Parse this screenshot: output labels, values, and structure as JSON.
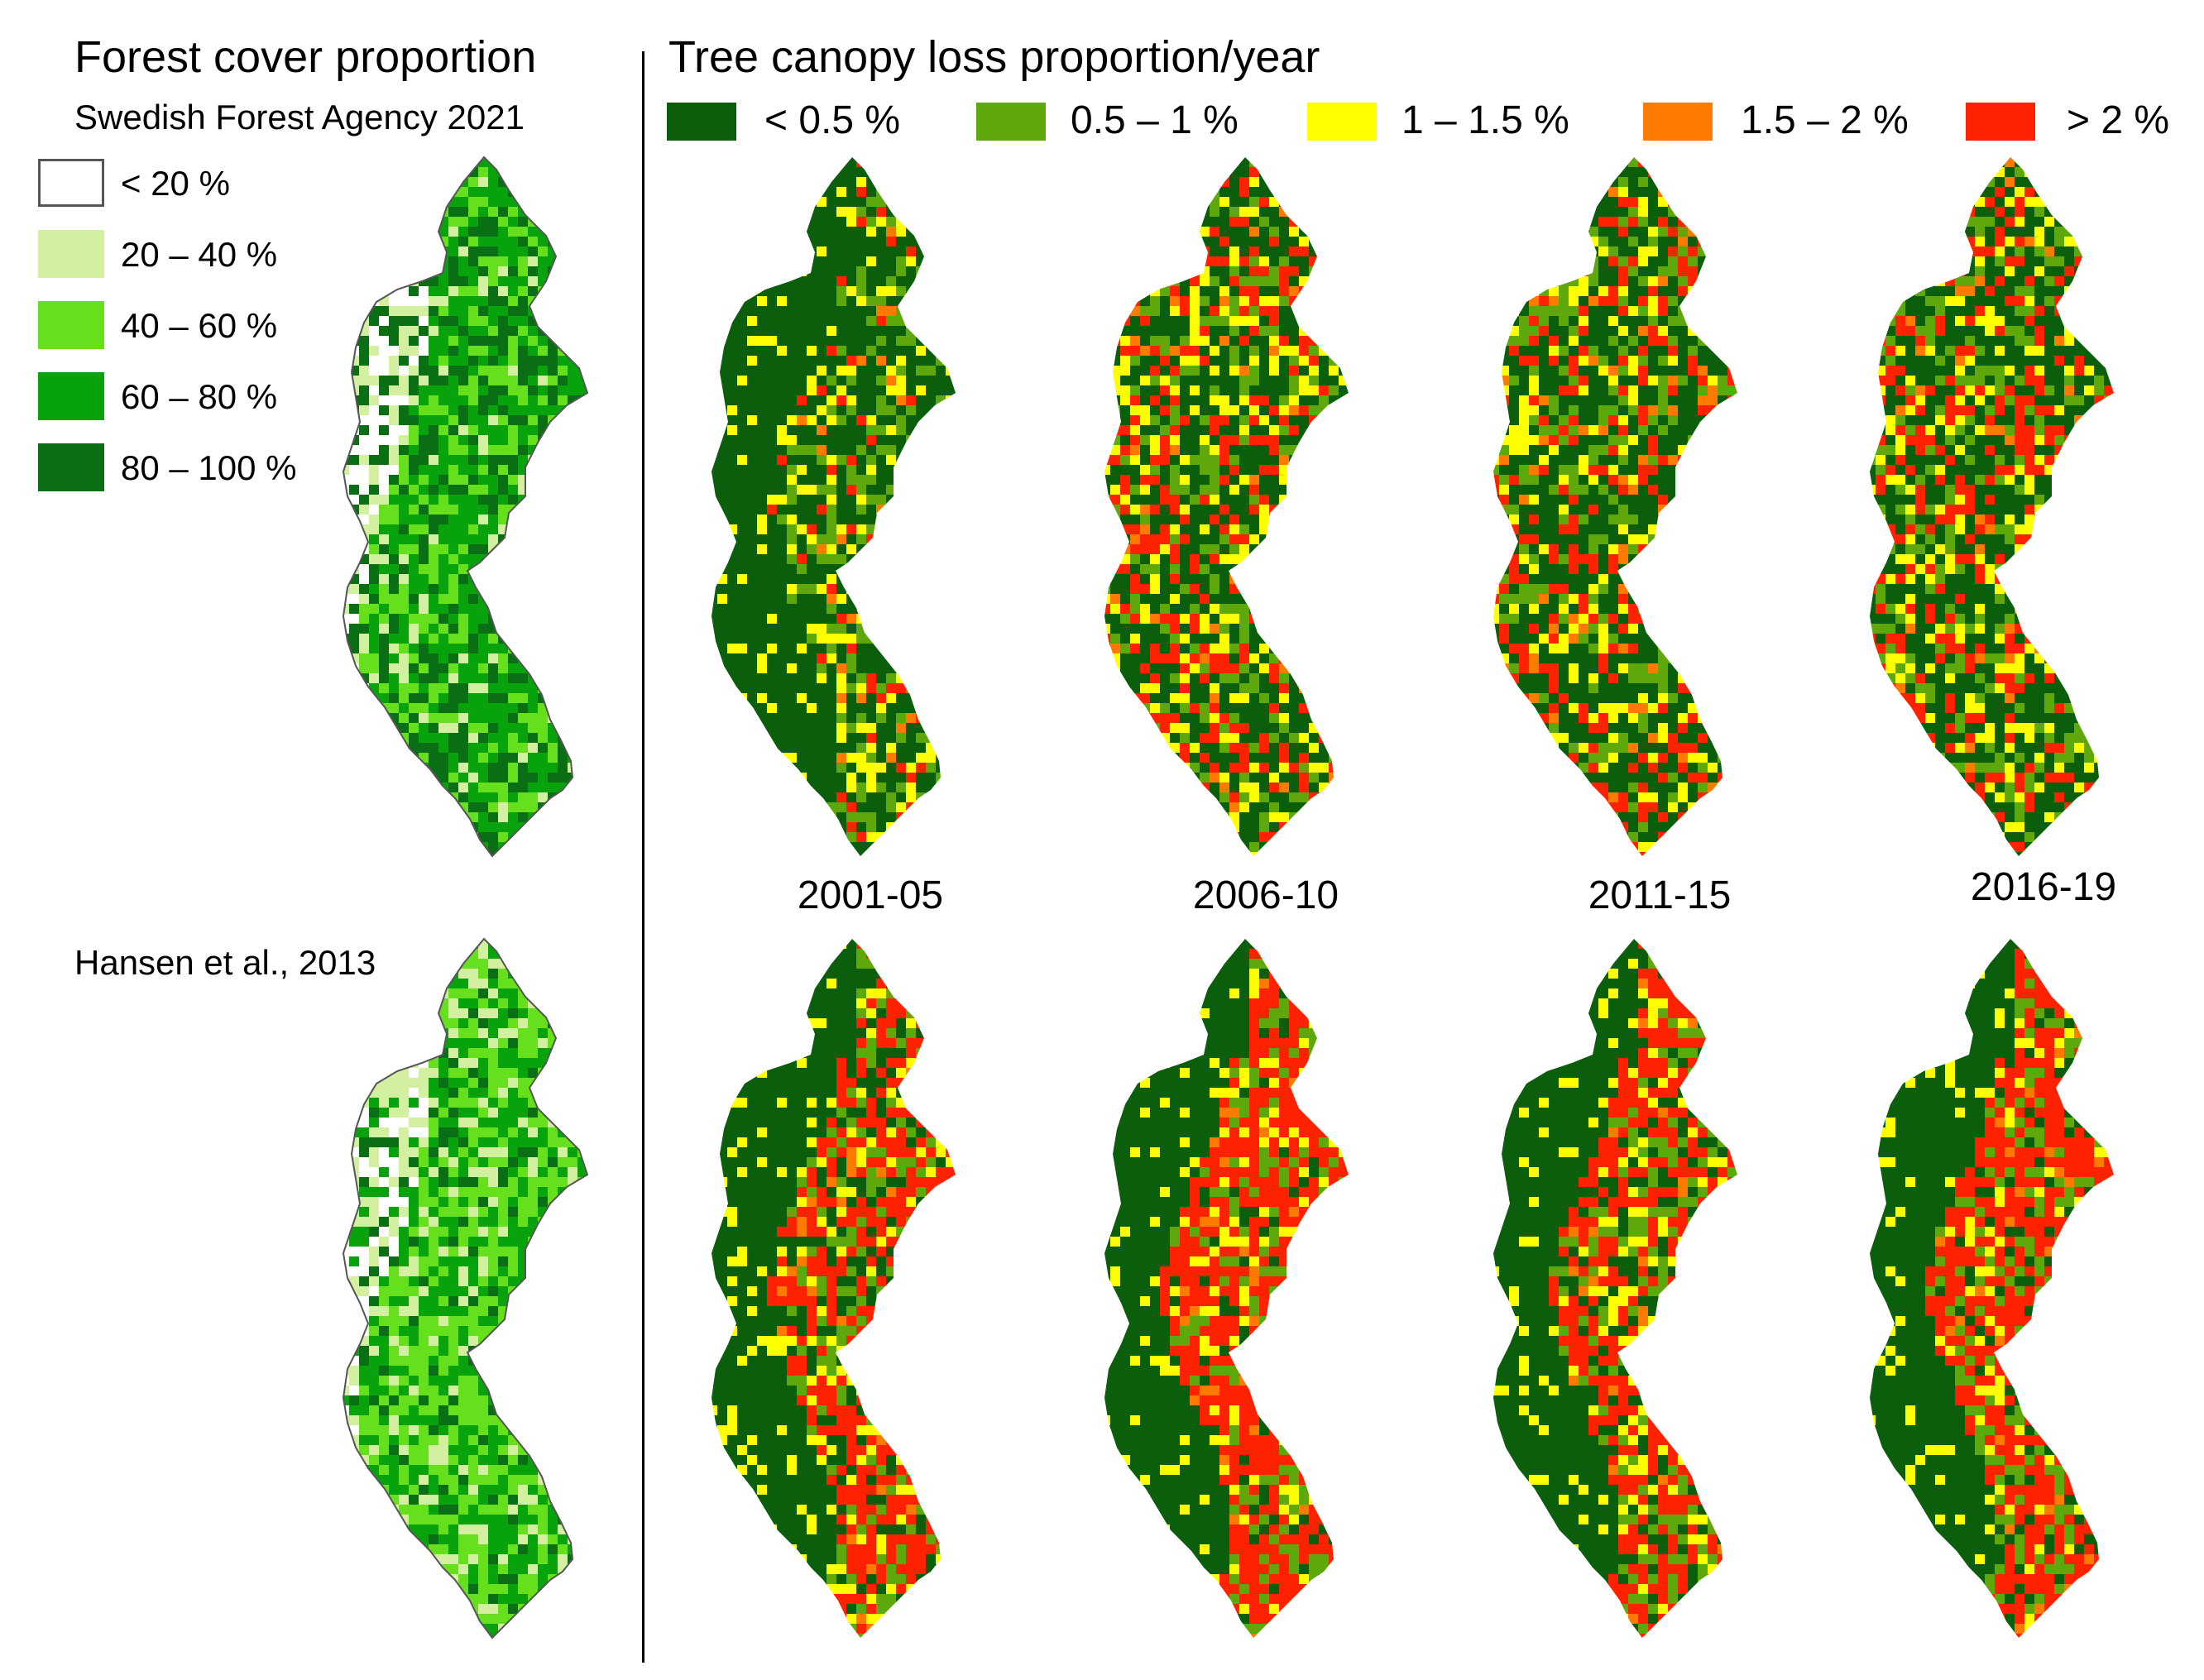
{
  "left_panel": {
    "title": "Forest cover proportion",
    "top_source": "Swedish Forest Agency 2021",
    "bottom_source": "Hansen et al., 2013",
    "legend": [
      {
        "label": "< 20 %",
        "color": "#ffffff"
      },
      {
        "label": "20 – 40 %",
        "color": "#d2f0a0"
      },
      {
        "label": "40 – 60 %",
        "color": "#66e01c"
      },
      {
        "label": "60 – 80 %",
        "color": "#08a30c"
      },
      {
        "label": "80 – 100 %",
        "color": "#0a6e14"
      }
    ]
  },
  "right_panel": {
    "title": "Tree canopy loss proportion/year",
    "legend": [
      {
        "label": "< 0.5 %",
        "color": "#0b5e0b"
      },
      {
        "label": "0.5 – 1 %",
        "color": "#5fa80c"
      },
      {
        "label": "1 – 1.5 %",
        "color": "#ffff00"
      },
      {
        "label": "1.5 – 2 %",
        "color": "#ff7b00"
      },
      {
        "label": "> 2 %",
        "color": "#ff2200"
      }
    ],
    "periods": [
      "2001-05",
      "2006-10",
      "2011-15",
      "2016-19"
    ]
  }
}
